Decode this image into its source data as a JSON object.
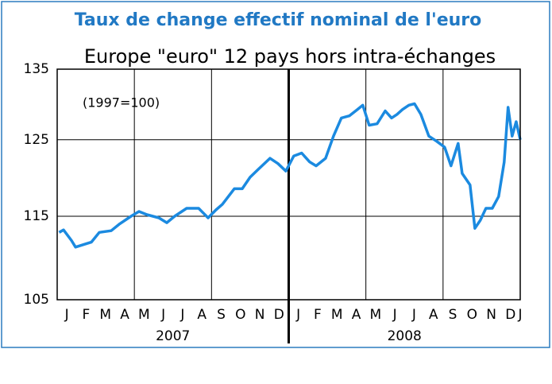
{
  "chart_data": {
    "type": "line",
    "title": "Taux de change effectif nominal de l'euro",
    "subtitle": "Europe \"euro\" 12 pays hors intra-échanges",
    "annotation": "(1997=100)",
    "log_scale": true,
    "grid": true,
    "x": [
      0.1,
      0.33,
      0.74,
      0.95,
      1.36,
      1.77,
      2.18,
      2.8,
      3.21,
      3.83,
      4.24,
      4.65,
      5.27,
      5.68,
      6.09,
      6.71,
      7.33,
      7.82,
      8.23,
      8.56,
      9.18,
      9.59,
      10.0,
      10.41,
      11.03,
      11.44,
      11.85,
      12.26,
      12.67,
      13.09,
      13.42,
      13.91,
      14.32,
      14.73,
      15.14,
      15.56,
      15.84,
      16.17,
      16.58,
      17.0,
      17.33,
      17.61,
      17.9,
      18.23,
      18.52,
      18.85,
      19.26,
      19.67,
      20.08,
      20.41,
      20.78,
      20.99,
      21.4,
      21.65,
      21.93,
      22.22,
      22.55,
      22.88,
      23.17,
      23.37,
      23.58,
      23.79,
      24.0
    ],
    "series": [
      {
        "color": "#1b8ae0",
        "values": [
          113,
          113.3,
          112,
          111.2,
          111.5,
          111.8,
          113,
          113.2,
          114,
          115,
          115.6,
          115.2,
          114.8,
          114.2,
          115,
          116,
          116,
          114.8,
          115.8,
          116.5,
          118.5,
          118.5,
          120,
          121,
          122.5,
          121.8,
          120.8,
          122.8,
          123.2,
          122,
          121.5,
          122.5,
          125.5,
          128,
          128.3,
          129.2,
          129.8,
          127,
          127.2,
          129,
          128,
          128.5,
          129.2,
          129.8,
          130,
          128.5,
          125.5,
          124.8,
          124,
          121.5,
          124.5,
          120.5,
          119,
          113.5,
          114.5,
          116,
          116,
          117.5,
          122,
          129.5,
          125.5,
          127.5,
          125
        ]
      }
    ],
    "xlim": [
      0,
      24
    ],
    "xgrid": [
      0,
      4,
      8,
      12,
      16,
      20,
      24
    ],
    "year_separator": 12,
    "xticks": [
      {
        "value": 0.5,
        "label": "J"
      },
      {
        "value": 1.5,
        "label": "F"
      },
      {
        "value": 2.5,
        "label": "M"
      },
      {
        "value": 3.5,
        "label": "A"
      },
      {
        "value": 4.5,
        "label": "M"
      },
      {
        "value": 5.5,
        "label": "J"
      },
      {
        "value": 6.5,
        "label": "J"
      },
      {
        "value": 7.5,
        "label": "A"
      },
      {
        "value": 8.5,
        "label": "S"
      },
      {
        "value": 9.5,
        "label": "O"
      },
      {
        "value": 10.5,
        "label": "N"
      },
      {
        "value": 11.5,
        "label": "D"
      },
      {
        "value": 12.5,
        "label": "J"
      },
      {
        "value": 13.5,
        "label": "F"
      },
      {
        "value": 14.5,
        "label": "M"
      },
      {
        "value": 15.5,
        "label": "A"
      },
      {
        "value": 16.5,
        "label": "M"
      },
      {
        "value": 17.5,
        "label": "J"
      },
      {
        "value": 18.5,
        "label": "J"
      },
      {
        "value": 19.5,
        "label": "A"
      },
      {
        "value": 20.5,
        "label": "S"
      },
      {
        "value": 21.5,
        "label": "O"
      },
      {
        "value": 22.5,
        "label": "N"
      },
      {
        "value": 23.5,
        "label": "D"
      },
      {
        "value": 24,
        "label": "J"
      }
    ],
    "year_labels": [
      {
        "value": 6,
        "label": "2007"
      },
      {
        "value": 18,
        "label": "2008"
      }
    ],
    "ylim": [
      105,
      135
    ],
    "yticks": [
      105,
      115,
      125,
      135
    ]
  }
}
